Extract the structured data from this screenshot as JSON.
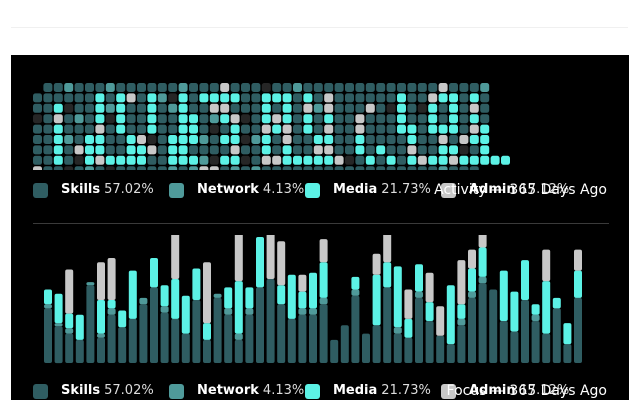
{
  "colors": {
    "background": "#000000",
    "skills": "#2f5d62",
    "network": "#4f9a9a",
    "media": "#5cf2e6",
    "admin": "#c8c8c8",
    "empty": "#262626"
  },
  "legend": [
    {
      "key": "skills",
      "name": "Skills",
      "pct": "57.02%"
    },
    {
      "key": "network",
      "name": "Network",
      "pct": "4.13%"
    },
    {
      "key": "media",
      "name": "Media",
      "pct": "21.73%"
    },
    {
      "key": "admin",
      "name": "Admin",
      "pct": "17.12%"
    }
  ],
  "chart_data": [
    {
      "type": "heatmap",
      "title": "Activity — 365 Days Ago",
      "categories": [
        "skills",
        "network",
        "media",
        "admin"
      ],
      "glyph_rows": [
        " ...........................................",
        "......M.M..M..M.MMMM..MMM.M.M......M..MMM.M.",
        "..M...M.M..M..M..MM...M.M.M.M......M..M.M.M.",
        "..M...M.M..M..MM..MM..MMM.M.M..M...M..M.M.M.",
        "..M...M.M..M..MM...M..MMM.M.M..M...MM.MMM.MM",
        "..M..MM..MM..MMM..MM..M.M..MM..M....M..M..MM",
        "..M..MM..MM..MM....M..M.M..MM..M.M..M..MM..M",
        "..M..M.MMMM..MMM..MM..MMMMMMMM..M.M.MMMMMMMMMM",
        "...........................................  "
      ]
    },
    {
      "type": "bar",
      "title": "Focus — 365 Days Ago",
      "series": [
        {
          "name": "Skills",
          "values": [
            52,
            35,
            28,
            22,
            74,
            24,
            46,
            34,
            42,
            56,
            72,
            48,
            42,
            28,
            60,
            22,
            62,
            46,
            22,
            46,
            72,
            80,
            56,
            42,
            46,
            46,
            56,
            22,
            36,
            64,
            28,
            36,
            72,
            28,
            24,
            62,
            40,
            26,
            18,
            36,
            62,
            76,
            70,
            40,
            30,
            60,
            40,
            28,
            52,
            18,
            62
          ]
        },
        {
          "name": "Network",
          "values": [
            4,
            3,
            5,
            0,
            3,
            4,
            6,
            0,
            0,
            6,
            0,
            6,
            0,
            0,
            0,
            0,
            4,
            6,
            6,
            6,
            0,
            0,
            0,
            0,
            6,
            6,
            6,
            0,
            0,
            6,
            0,
            0,
            0,
            6,
            0,
            6,
            0,
            0,
            0,
            6,
            6,
            6,
            0,
            0,
            0,
            0,
            6,
            0,
            0,
            0,
            0
          ]
        },
        {
          "name": "Media",
          "values": [
            14,
            28,
            14,
            24,
            0,
            32,
            8,
            16,
            46,
            0,
            28,
            20,
            38,
            36,
            30,
            16,
            0,
            20,
            50,
            20,
            48,
            0,
            18,
            42,
            16,
            34,
            34,
            0,
            0,
            12,
            0,
            48,
            24,
            58,
            18,
            26,
            18,
            0,
            56,
            14,
            22,
            28,
            0,
            48,
            38,
            38,
            10,
            50,
            10,
            20,
            26
          ]
        },
        {
          "name": "Admin",
          "values": [
            0,
            0,
            42,
            0,
            0,
            36,
            40,
            0,
            0,
            0,
            0,
            0,
            60,
            0,
            0,
            58,
            0,
            0,
            46,
            0,
            0,
            48,
            42,
            0,
            16,
            0,
            22,
            0,
            0,
            0,
            0,
            20,
            64,
            0,
            28,
            0,
            28,
            28,
            0,
            42,
            18,
            22,
            0,
            0,
            0,
            0,
            0,
            30,
            0,
            0,
            20
          ]
        }
      ]
    }
  ]
}
